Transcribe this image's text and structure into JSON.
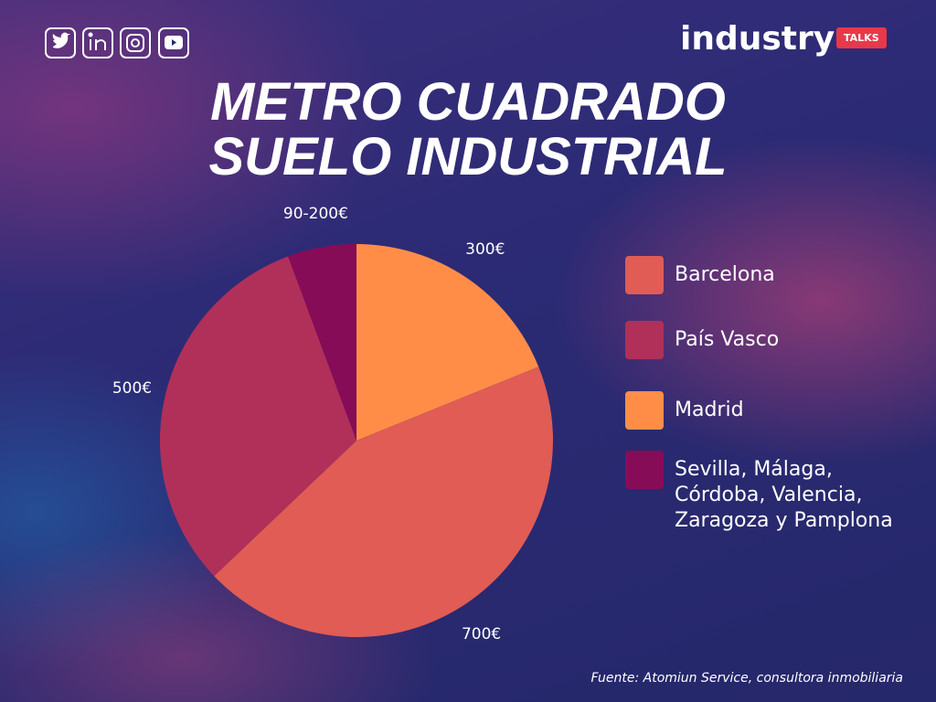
{
  "brand": {
    "name": "industry",
    "badge": "TALKS"
  },
  "source": "Fuente: Atomiun Service, consultora inmobiliaria",
  "chart_data": {
    "type": "pie",
    "title": [
      "METRO CUADRADO",
      "SUELO INDUSTRIAL"
    ],
    "categories": [
      "Barcelona",
      "País Vasco",
      "Madrid",
      "Sevilla, Málaga, Córdoba, Valencia, Zaragoza y Pamplona"
    ],
    "values": [
      700,
      500,
      300,
      90
    ],
    "value_labels": [
      "700€",
      "500€",
      "300€",
      "90-200€"
    ],
    "colors": [
      "#e05c55",
      "#b0305a",
      "#ff8d48",
      "#870c57"
    ],
    "legend": "right"
  }
}
